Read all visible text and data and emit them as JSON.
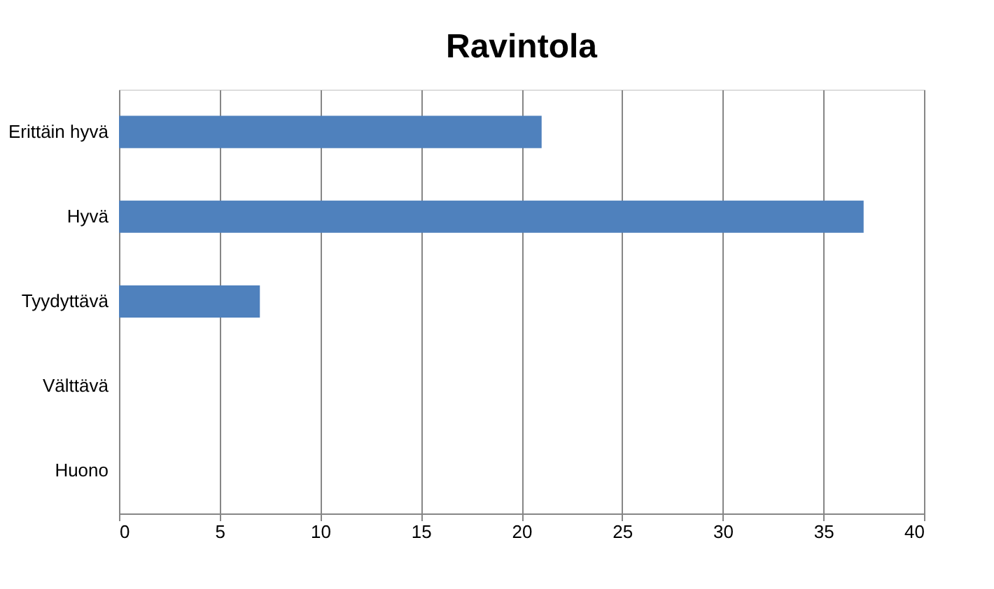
{
  "chart_data": {
    "type": "bar",
    "orientation": "horizontal",
    "title": "Ravintola",
    "categories": [
      "Erittäin hyvä",
      "Hyvä",
      "Tyydyttävä",
      "Välttävä",
      "Huono"
    ],
    "values": [
      21,
      37,
      7,
      0,
      0
    ],
    "color": "#4f81bd",
    "xlim": [
      0,
      40
    ],
    "xticks": [
      0,
      5,
      10,
      15,
      20,
      25,
      30,
      35,
      40
    ],
    "grid": "x"
  }
}
